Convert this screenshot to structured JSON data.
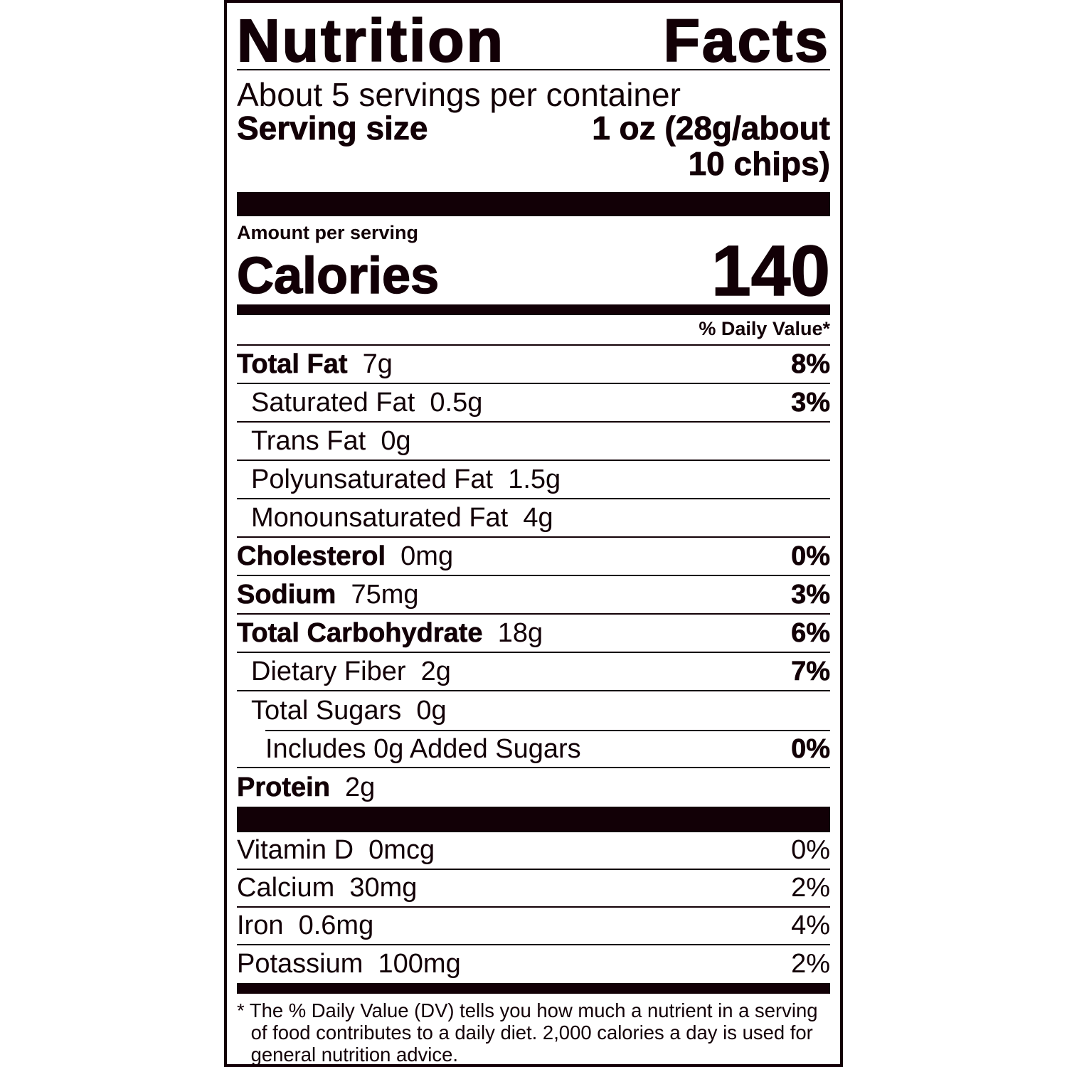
{
  "title": {
    "word1": "Nutrition",
    "word2": "Facts"
  },
  "servings_per_container": "About 5 servings per container",
  "serving_size": {
    "label": "Serving size",
    "value_line1": "1 oz (28g/about",
    "value_line2": "10 chips)"
  },
  "amount_per_serving": "Amount per serving",
  "calories": {
    "label": "Calories",
    "value": "140"
  },
  "daily_value_header": "% Daily Value*",
  "nutrients": [
    {
      "name": "Total Fat",
      "amount": "7g",
      "dv": "8%"
    },
    {
      "name": "Saturated Fat",
      "amount": "0.5g",
      "dv": "3%"
    },
    {
      "name": "Trans Fat",
      "amount": "0g",
      "dv": ""
    },
    {
      "name": "Polyunsaturated Fat",
      "amount": "1.5g",
      "dv": ""
    },
    {
      "name": "Monounsaturated Fat",
      "amount": "4g",
      "dv": ""
    },
    {
      "name": "Cholesterol",
      "amount": "0mg",
      "dv": "0%"
    },
    {
      "name": "Sodium",
      "amount": "75mg",
      "dv": "3%"
    },
    {
      "name": "Total Carbohydrate",
      "amount": "18g",
      "dv": "6%"
    },
    {
      "name": "Dietary Fiber",
      "amount": "2g",
      "dv": "7%"
    },
    {
      "name": "Total Sugars",
      "amount": "0g",
      "dv": ""
    },
    {
      "name": "Includes 0g Added Sugars",
      "amount": "",
      "dv": "0%"
    },
    {
      "name": "Protein",
      "amount": "2g",
      "dv": ""
    }
  ],
  "vitamins": [
    {
      "name": "Vitamin D",
      "amount": "0mcg",
      "dv": "0%"
    },
    {
      "name": "Calcium",
      "amount": "30mg",
      "dv": "2%"
    },
    {
      "name": "Iron",
      "amount": "0.6mg",
      "dv": "4%"
    },
    {
      "name": "Potassium",
      "amount": "100mg",
      "dv": "2%"
    }
  ],
  "footnote": "* The % Daily Value (DV) tells you how much a nutrient in a serving of food contributes to a daily diet. 2,000 calories a day is used for general nutrition advice.",
  "colors": {
    "ink": "#120006",
    "background": "#ffffff"
  }
}
